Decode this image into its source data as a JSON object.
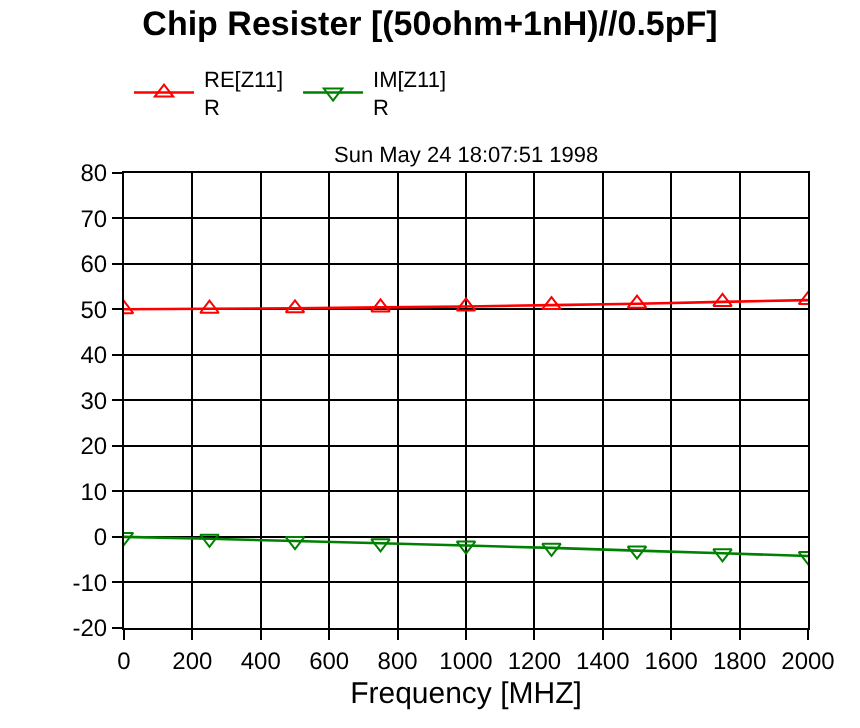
{
  "chart_data": {
    "type": "line",
    "title": "Chip Resister [(50ohm+1nH)//0.5pF]",
    "subtitle": "Sun May 24 18:07:51 1998",
    "xlabel": "Frequency [MHZ]",
    "x": [
      0,
      250,
      500,
      750,
      1000,
      1250,
      1500,
      1750,
      2000
    ],
    "series": [
      {
        "name": "RE[Z11]\nR",
        "color": "#ff0000",
        "marker": "triangle-up",
        "values": [
          50,
          50.1,
          50.2,
          50.4,
          50.6,
          50.9,
          51.2,
          51.6,
          52
        ]
      },
      {
        "name": "IM[Z11]\nR",
        "color": "#008000",
        "marker": "triangle-down",
        "values": [
          0,
          -0.4,
          -0.9,
          -1.4,
          -1.9,
          -2.4,
          -3,
          -3.6,
          -4.2
        ]
      }
    ],
    "xlim": [
      0,
      2000
    ],
    "xticks": [
      0,
      200,
      400,
      600,
      800,
      1000,
      1200,
      1400,
      1600,
      1800,
      2000
    ],
    "ylim": [
      -20,
      80
    ],
    "yticks": [
      -20,
      -10,
      0,
      10,
      20,
      30,
      40,
      50,
      60,
      70,
      80
    ],
    "grid": true,
    "legend": "top left",
    "line_style": "solid"
  }
}
